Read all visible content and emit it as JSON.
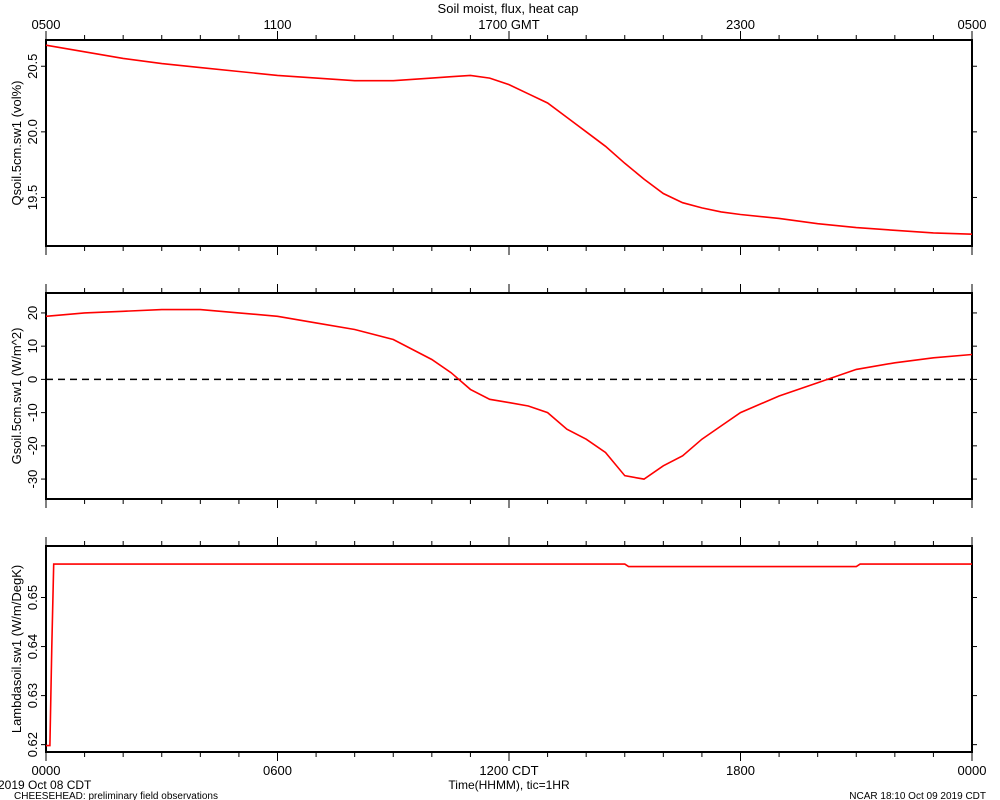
{
  "title": "Soil moist, flux, heat cap",
  "top_axis": {
    "ticks": [
      "0500",
      "1100",
      "1700 GMT",
      "2300",
      "0500"
    ]
  },
  "bottom_axis": {
    "ticks": [
      "0000",
      "0600",
      "1200 CDT",
      "1800",
      "0000"
    ],
    "label": "Time(HHMM), tic=1HR"
  },
  "footer": {
    "date": "2019 Oct 08 CDT",
    "project": "CHEESEHEAD: preliminary field observations",
    "stamp": "NCAR 18:10 Oct 09 2019 CDT"
  },
  "colors": {
    "series": "#ff0000",
    "axes": "#000000"
  },
  "chart_data": [
    {
      "type": "line",
      "ylabel": "Qsoil.5cm.sw1  (vol%)",
      "xlim": [
        0,
        24
      ],
      "ylim": [
        19.13,
        20.7
      ],
      "yticks": [
        19.5,
        20.0,
        20.5
      ],
      "ytick_labels": [
        "19.5",
        "20.0",
        "20.5"
      ],
      "x": [
        0,
        1,
        2,
        3,
        4,
        5,
        6,
        7,
        8,
        9,
        10,
        10.5,
        11,
        11.5,
        12,
        12.5,
        13,
        13.5,
        14,
        14.5,
        15,
        15.5,
        16,
        16.5,
        17,
        17.5,
        18,
        19,
        20,
        21,
        22,
        23,
        24
      ],
      "y": [
        20.66,
        20.61,
        20.56,
        20.52,
        20.49,
        20.46,
        20.43,
        20.41,
        20.39,
        20.39,
        20.41,
        20.42,
        20.43,
        20.41,
        20.36,
        20.29,
        20.22,
        20.11,
        20.0,
        19.89,
        19.76,
        19.64,
        19.53,
        19.46,
        19.42,
        19.39,
        19.37,
        19.34,
        19.3,
        19.27,
        19.25,
        19.23,
        19.22
      ]
    },
    {
      "type": "line",
      "ylabel": "Gsoil.5cm.sw1  (W/m^2)",
      "xlim": [
        0,
        24
      ],
      "ylim": [
        -36,
        26
      ],
      "yticks": [
        -30,
        -20,
        -10,
        0,
        10,
        20
      ],
      "ytick_labels": [
        "-30",
        "-20",
        "-10",
        "0",
        "10",
        "20"
      ],
      "reference_line": 0,
      "x": [
        0,
        1,
        2,
        3,
        4,
        5,
        6,
        7,
        8,
        9,
        10,
        10.5,
        11,
        11.5,
        12,
        12.5,
        13,
        13.5,
        14,
        14.5,
        15,
        15.5,
        16,
        16.5,
        17,
        17.5,
        18,
        19,
        20,
        21,
        22,
        23,
        24
      ],
      "y": [
        19,
        20,
        20.5,
        21,
        21,
        20,
        19,
        17,
        15,
        12,
        6,
        2,
        -3,
        -6,
        -7,
        -8,
        -10,
        -15,
        -18,
        -22,
        -29,
        -30,
        -26,
        -23,
        -18,
        -14,
        -10,
        -5,
        -1,
        3,
        5,
        6.5,
        7.5
      ]
    },
    {
      "type": "line",
      "ylabel": "Lambdasoil.sw1  (W/m/DegK)",
      "xlim": [
        0,
        24
      ],
      "ylim": [
        0.6185,
        0.6605
      ],
      "yticks": [
        0.62,
        0.63,
        0.64,
        0.65
      ],
      "ytick_labels": [
        "0.62",
        "0.63",
        "0.64",
        "0.65"
      ],
      "x": [
        0,
        0.1,
        0.15,
        0.2,
        15,
        15.1,
        16,
        17,
        18,
        20,
        21,
        21.1,
        22,
        23,
        24
      ],
      "y": [
        0.6198,
        0.6198,
        0.64,
        0.6568,
        0.6568,
        0.6563,
        0.6563,
        0.6563,
        0.6563,
        0.6563,
        0.6563,
        0.6568,
        0.6568,
        0.6568,
        0.6568
      ]
    }
  ]
}
